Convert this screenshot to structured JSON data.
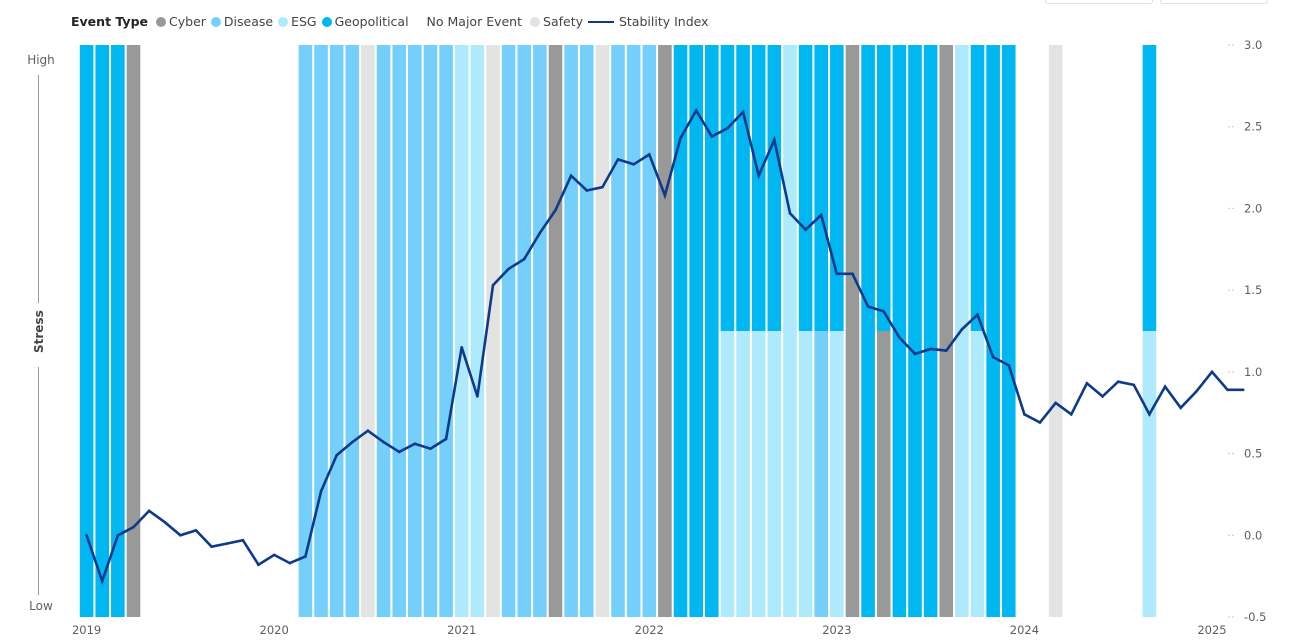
{
  "legend": {
    "title": "Event Type",
    "items": [
      {
        "label": "Cyber",
        "color": "#999999",
        "kind": "dot"
      },
      {
        "label": "Disease",
        "color": "#75CFFB",
        "kind": "dot"
      },
      {
        "label": "ESG",
        "color": "#AEE9FC",
        "kind": "dot"
      },
      {
        "label": "Geopolitical",
        "color": "#00B7F1",
        "kind": "dot"
      },
      {
        "label": "No Major Event",
        "color": "#FFFFFF",
        "kind": "none"
      },
      {
        "label": "Safety",
        "color": "#E3E3E3",
        "kind": "dot"
      },
      {
        "label": "Stability Index",
        "color": "#0E3A8C",
        "kind": "line"
      }
    ]
  },
  "left_axis": {
    "title": "Stress",
    "high": "High",
    "low": "Low"
  },
  "chart_data": {
    "type": "line",
    "secondary_type": "stacked-bar (event bands)",
    "x_start": "2019-01",
    "x_frequency": "monthly",
    "xticks": [
      "2019",
      "2020",
      "2021",
      "2022",
      "2023",
      "2024",
      "2025"
    ],
    "yticks": [
      "3.0",
      "2.5",
      "2.0",
      "1.5",
      "1.0",
      "0.5",
      "0.0",
      "-0.5"
    ],
    "ylim": [
      -0.5,
      3.0
    ],
    "y_axis_position": "right",
    "grid": false,
    "legend_position": "top-left",
    "series": [
      {
        "name": "Stability Index",
        "color": "#0E3A8C",
        "values": [
          0.0,
          -0.28,
          0.0,
          0.05,
          0.15,
          0.08,
          0.0,
          0.03,
          -0.07,
          -0.05,
          -0.03,
          -0.18,
          -0.12,
          -0.17,
          -0.13,
          0.27,
          0.49,
          0.57,
          0.64,
          0.57,
          0.51,
          0.56,
          0.53,
          0.59,
          1.15,
          0.85,
          1.53,
          1.63,
          1.69,
          1.85,
          1.99,
          2.2,
          2.11,
          2.13,
          2.3,
          2.27,
          2.33,
          2.08,
          2.43,
          2.6,
          2.44,
          2.49,
          2.59,
          2.2,
          2.42,
          1.97,
          1.87,
          1.96,
          1.6,
          1.6,
          1.4,
          1.37,
          1.21,
          1.11,
          1.14,
          1.13,
          1.26,
          1.35,
          1.09,
          1.04,
          0.74,
          0.69,
          0.81,
          0.74,
          0.93,
          0.85,
          0.94,
          0.92,
          0.74,
          0.91,
          0.78,
          0.88,
          1.0,
          0.89,
          0.89
        ]
      }
    ],
    "event_colors": {
      "Cyber": "#999999",
      "Disease": "#75CFFB",
      "ESG": "#AEE9FC",
      "Geopolitical": "#00B7F1",
      "Safety": "#E3E3E3",
      "No Major Event": "#FFFFFF"
    },
    "events": [
      [
        "Geopolitical"
      ],
      [
        "Geopolitical"
      ],
      [
        "Geopolitical"
      ],
      [
        "Cyber"
      ],
      [],
      [],
      [],
      [],
      [],
      [],
      [],
      [],
      [],
      [],
      [
        "Disease"
      ],
      [
        "Disease"
      ],
      [
        "Disease"
      ],
      [
        "Disease"
      ],
      [
        "Safety"
      ],
      [
        "Disease"
      ],
      [
        "Disease"
      ],
      [
        "Disease"
      ],
      [
        "Disease"
      ],
      [
        "Disease"
      ],
      [
        "ESG"
      ],
      [
        "ESG"
      ],
      [
        "Safety"
      ],
      [
        "Disease"
      ],
      [
        "Disease"
      ],
      [
        "Disease"
      ],
      [
        "Cyber"
      ],
      [
        "Disease"
      ],
      [
        "Disease"
      ],
      [
        "Safety"
      ],
      [
        "Disease"
      ],
      [
        "Disease"
      ],
      [
        "Disease"
      ],
      [
        "Cyber"
      ],
      [
        "Geopolitical"
      ],
      [
        "Geopolitical"
      ],
      [
        "Geopolitical"
      ],
      [
        "Geopolitical",
        "ESG"
      ],
      [
        "Geopolitical",
        "ESG"
      ],
      [
        "Geopolitical",
        "ESG"
      ],
      [
        "Geopolitical",
        "ESG"
      ],
      [
        "ESG"
      ],
      [
        "Geopolitical",
        "ESG"
      ],
      [
        "Geopolitical",
        "Disease"
      ],
      [
        "Geopolitical",
        "ESG"
      ],
      [
        "Cyber"
      ],
      [
        "Geopolitical"
      ],
      [
        "Geopolitical",
        "Cyber"
      ],
      [
        "Geopolitical"
      ],
      [
        "Geopolitical"
      ],
      [
        "Geopolitical"
      ],
      [
        "Cyber"
      ],
      [
        "ESG"
      ],
      [
        "Geopolitical",
        "ESG"
      ],
      [
        "Geopolitical"
      ],
      [
        "Geopolitical"
      ],
      [],
      [],
      [
        "Safety"
      ],
      [],
      [],
      [],
      [],
      [],
      [
        "Geopolitical",
        "ESG"
      ],
      [],
      [],
      [],
      [],
      [],
      []
    ]
  }
}
